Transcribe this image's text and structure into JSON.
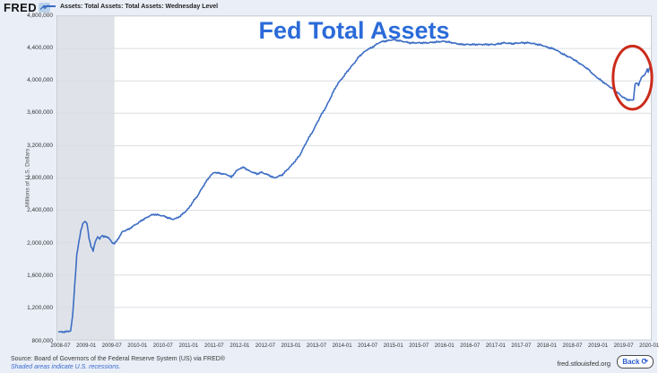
{
  "header": {
    "logo_text": "FRED",
    "legend_label": "Assets: Total Assets: Total Assets: Wednesday Level"
  },
  "footer": {
    "source_line": "Source: Board of Governors of the Federal Reserve System (US) via FRED®",
    "recession_note": "Shaded areas indicate U.S. recessions.",
    "site_url": "fred.stlouisfed.org",
    "back_button_label": "Back",
    "back_button_icon": "⟳"
  },
  "colors": {
    "line": "#3d6dc4",
    "title": "#2b6bd9",
    "recession_band": "#dfe3e9",
    "annotation": "#cc2a1a",
    "page_bg": "#e9eef7",
    "grid": "#d9dde2"
  },
  "chart_data": {
    "type": "line",
    "title": "Fed Total Assets",
    "xlabel": "",
    "ylabel": "Millions of U.S. Dollars",
    "series_name": "Assets: Total Assets: Total Assets: Wednesday Level",
    "legend_position": "top-left",
    "grid": "horizontal",
    "x_range": [
      2008.42,
      2020.05
    ],
    "ylim": [
      800000,
      4800000
    ],
    "y_ticks": [
      {
        "v": 4800000,
        "label": "4,800,000"
      },
      {
        "v": 4400000,
        "label": "4,400,000"
      },
      {
        "v": 4000000,
        "label": "4,000,000"
      },
      {
        "v": 3600000,
        "label": "3,600,000"
      },
      {
        "v": 3200000,
        "label": "3,200,000"
      },
      {
        "v": 2800000,
        "label": "2,800,000"
      },
      {
        "v": 2400000,
        "label": "2,400,000"
      },
      {
        "v": 2000000,
        "label": "2,000,000"
      },
      {
        "v": 1600000,
        "label": "1,600,000"
      },
      {
        "v": 1200000,
        "label": "1,200,000"
      },
      {
        "v": 800000,
        "label": "800,000"
      }
    ],
    "x_ticks": [
      {
        "t": 2008.5,
        "label": "2008-07"
      },
      {
        "t": 2009.0,
        "label": "2009-01"
      },
      {
        "t": 2009.5,
        "label": "2009-07"
      },
      {
        "t": 2010.0,
        "label": "2010-01"
      },
      {
        "t": 2010.5,
        "label": "2010-07"
      },
      {
        "t": 2011.0,
        "label": "2011-01"
      },
      {
        "t": 2011.5,
        "label": "2011-07"
      },
      {
        "t": 2012.0,
        "label": "2012-01"
      },
      {
        "t": 2012.5,
        "label": "2012-07"
      },
      {
        "t": 2013.0,
        "label": "2013-01"
      },
      {
        "t": 2013.5,
        "label": "2013-07"
      },
      {
        "t": 2014.0,
        "label": "2014-01"
      },
      {
        "t": 2014.5,
        "label": "2014-07"
      },
      {
        "t": 2015.0,
        "label": "2015-01"
      },
      {
        "t": 2015.5,
        "label": "2015-07"
      },
      {
        "t": 2016.0,
        "label": "2016-01"
      },
      {
        "t": 2016.5,
        "label": "2016-07"
      },
      {
        "t": 2017.0,
        "label": "2017-01"
      },
      {
        "t": 2017.5,
        "label": "2017-07"
      },
      {
        "t": 2018.0,
        "label": "2018-01"
      },
      {
        "t": 2018.5,
        "label": "2018-07"
      },
      {
        "t": 2019.0,
        "label": "2019-01"
      },
      {
        "t": 2019.5,
        "label": "2019-07"
      },
      {
        "t": 2020.0,
        "label": "2020-01"
      }
    ],
    "recession_bands": [
      [
        2008.42,
        2009.54
      ]
    ],
    "annotation_ellipse": {
      "t": 2019.69,
      "v": 4040000,
      "rt": 0.38,
      "rv": 390000,
      "color": "#cc2a1a"
    },
    "line_jitter": 6500,
    "points": [
      [
        2008.44,
        895000
      ],
      [
        2008.5,
        900000
      ],
      [
        2008.56,
        897000
      ],
      [
        2008.62,
        903000
      ],
      [
        2008.68,
        912000
      ],
      [
        2008.72,
        1100000
      ],
      [
        2008.76,
        1480000
      ],
      [
        2008.8,
        1850000
      ],
      [
        2008.84,
        2000000
      ],
      [
        2008.88,
        2150000
      ],
      [
        2008.92,
        2240000
      ],
      [
        2008.96,
        2260000
      ],
      [
        2009.0,
        2240000
      ],
      [
        2009.04,
        2060000
      ],
      [
        2009.08,
        1950000
      ],
      [
        2009.12,
        1900000
      ],
      [
        2009.16,
        2010000
      ],
      [
        2009.21,
        2070000
      ],
      [
        2009.25,
        2050000
      ],
      [
        2009.29,
        2090000
      ],
      [
        2009.33,
        2070000
      ],
      [
        2009.37,
        2080000
      ],
      [
        2009.42,
        2060000
      ],
      [
        2009.46,
        2030000
      ],
      [
        2009.5,
        2000000
      ],
      [
        2009.54,
        1990000
      ],
      [
        2009.58,
        2020000
      ],
      [
        2009.62,
        2060000
      ],
      [
        2009.66,
        2100000
      ],
      [
        2009.7,
        2140000
      ],
      [
        2009.75,
        2150000
      ],
      [
        2009.79,
        2160000
      ],
      [
        2009.83,
        2170000
      ],
      [
        2009.87,
        2190000
      ],
      [
        2009.92,
        2210000
      ],
      [
        2009.96,
        2230000
      ],
      [
        2010.0,
        2240000
      ],
      [
        2010.08,
        2280000
      ],
      [
        2010.17,
        2310000
      ],
      [
        2010.25,
        2340000
      ],
      [
        2010.33,
        2350000
      ],
      [
        2010.42,
        2340000
      ],
      [
        2010.5,
        2330000
      ],
      [
        2010.58,
        2310000
      ],
      [
        2010.67,
        2290000
      ],
      [
        2010.75,
        2300000
      ],
      [
        2010.83,
        2330000
      ],
      [
        2010.92,
        2380000
      ],
      [
        2011.0,
        2430000
      ],
      [
        2011.08,
        2510000
      ],
      [
        2011.17,
        2580000
      ],
      [
        2011.25,
        2670000
      ],
      [
        2011.33,
        2750000
      ],
      [
        2011.42,
        2830000
      ],
      [
        2011.5,
        2870000
      ],
      [
        2011.58,
        2860000
      ],
      [
        2011.67,
        2850000
      ],
      [
        2011.75,
        2840000
      ],
      [
        2011.83,
        2810000
      ],
      [
        2011.92,
        2880000
      ],
      [
        2012.0,
        2920000
      ],
      [
        2012.08,
        2930000
      ],
      [
        2012.17,
        2890000
      ],
      [
        2012.25,
        2870000
      ],
      [
        2012.33,
        2850000
      ],
      [
        2012.42,
        2870000
      ],
      [
        2012.5,
        2850000
      ],
      [
        2012.58,
        2830000
      ],
      [
        2012.67,
        2800000
      ],
      [
        2012.75,
        2820000
      ],
      [
        2012.83,
        2840000
      ],
      [
        2012.92,
        2900000
      ],
      [
        2013.0,
        2950000
      ],
      [
        2013.08,
        3010000
      ],
      [
        2013.17,
        3080000
      ],
      [
        2013.25,
        3180000
      ],
      [
        2013.33,
        3280000
      ],
      [
        2013.42,
        3370000
      ],
      [
        2013.5,
        3470000
      ],
      [
        2013.58,
        3570000
      ],
      [
        2013.67,
        3660000
      ],
      [
        2013.75,
        3760000
      ],
      [
        2013.83,
        3870000
      ],
      [
        2013.92,
        3970000
      ],
      [
        2014.0,
        4030000
      ],
      [
        2014.08,
        4100000
      ],
      [
        2014.17,
        4170000
      ],
      [
        2014.25,
        4230000
      ],
      [
        2014.33,
        4300000
      ],
      [
        2014.42,
        4350000
      ],
      [
        2014.5,
        4390000
      ],
      [
        2014.58,
        4410000
      ],
      [
        2014.67,
        4450000
      ],
      [
        2014.75,
        4480000
      ],
      [
        2014.83,
        4490000
      ],
      [
        2014.92,
        4500000
      ],
      [
        2015.0,
        4510000
      ],
      [
        2015.17,
        4490000
      ],
      [
        2015.33,
        4470000
      ],
      [
        2015.5,
        4470000
      ],
      [
        2015.67,
        4470000
      ],
      [
        2015.83,
        4480000
      ],
      [
        2016.0,
        4490000
      ],
      [
        2016.17,
        4470000
      ],
      [
        2016.33,
        4450000
      ],
      [
        2016.5,
        4450000
      ],
      [
        2016.67,
        4450000
      ],
      [
        2016.83,
        4450000
      ],
      [
        2017.0,
        4450000
      ],
      [
        2017.17,
        4470000
      ],
      [
        2017.33,
        4460000
      ],
      [
        2017.5,
        4470000
      ],
      [
        2017.67,
        4470000
      ],
      [
        2017.83,
        4450000
      ],
      [
        2017.92,
        4440000
      ],
      [
        2018.0,
        4420000
      ],
      [
        2018.17,
        4390000
      ],
      [
        2018.33,
        4330000
      ],
      [
        2018.5,
        4280000
      ],
      [
        2018.67,
        4210000
      ],
      [
        2018.83,
        4140000
      ],
      [
        2018.92,
        4080000
      ],
      [
        2019.0,
        4040000
      ],
      [
        2019.17,
        3960000
      ],
      [
        2019.33,
        3890000
      ],
      [
        2019.5,
        3800000
      ],
      [
        2019.58,
        3770000
      ],
      [
        2019.67,
        3760000
      ],
      [
        2019.71,
        3770000
      ],
      [
        2019.74,
        3960000
      ],
      [
        2019.78,
        3970000
      ],
      [
        2019.81,
        3950000
      ],
      [
        2019.85,
        4020000
      ],
      [
        2019.88,
        4050000
      ],
      [
        2019.92,
        4070000
      ],
      [
        2019.95,
        4100000
      ],
      [
        2019.98,
        4140000
      ],
      [
        2020.0,
        4110000
      ],
      [
        2020.03,
        4170000
      ]
    ]
  }
}
